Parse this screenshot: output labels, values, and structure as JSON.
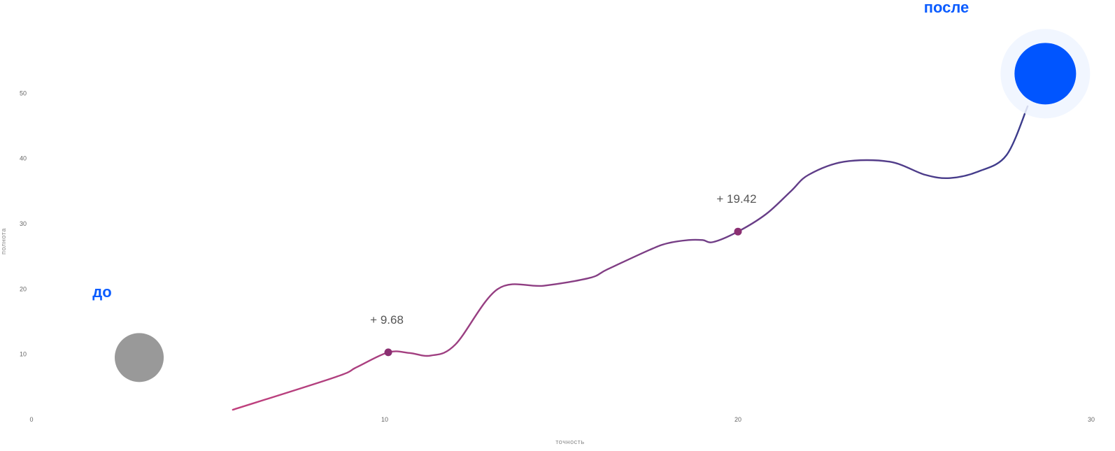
{
  "colors": {
    "before": "#999999",
    "after": "#0055ff",
    "curve_start": "#c1407d",
    "curve_end": "#3b3c8c",
    "point": "#8b2f72",
    "label_blue": "#0b5cff"
  },
  "chart_data": {
    "type": "line",
    "xlabel": "точность",
    "ylabel": "полнота",
    "xlim": [
      0,
      30
    ],
    "ylim": [
      0,
      60
    ],
    "xticks": [
      "0",
      "10",
      "20",
      "30"
    ],
    "yticks": [
      "10",
      "20",
      "30",
      "40",
      "50"
    ],
    "curve": {
      "x": [
        5.7,
        8.6,
        9.2,
        10.1,
        10.7,
        11.3,
        12.0,
        13.2,
        14.5,
        15.8,
        16.3,
        17.5,
        18.0,
        18.6,
        19.0,
        19.3,
        20.0,
        20.8,
        21.5,
        22.0,
        23.0,
        24.3,
        25.3,
        26.0,
        26.8,
        27.6,
        28.2
      ],
      "y": [
        1.5,
        6.5,
        8.0,
        10.3,
        10.2,
        9.8,
        11.5,
        20.0,
        20.5,
        21.7,
        23.0,
        26.0,
        27.0,
        27.5,
        27.5,
        27.2,
        28.8,
        31.5,
        35.0,
        37.5,
        39.5,
        39.5,
        37.5,
        37.0,
        38.0,
        40.5,
        48.0
      ]
    },
    "points": [
      {
        "x": 10.1,
        "y": 10.3,
        "label": "+ 9.68"
      },
      {
        "x": 20.0,
        "y": 28.8,
        "label": "+ 19.42"
      }
    ],
    "before": {
      "x": 3.05,
      "y": 9.5,
      "label": "до"
    },
    "after": {
      "x": 28.7,
      "y": 53.0,
      "label": "после"
    }
  }
}
